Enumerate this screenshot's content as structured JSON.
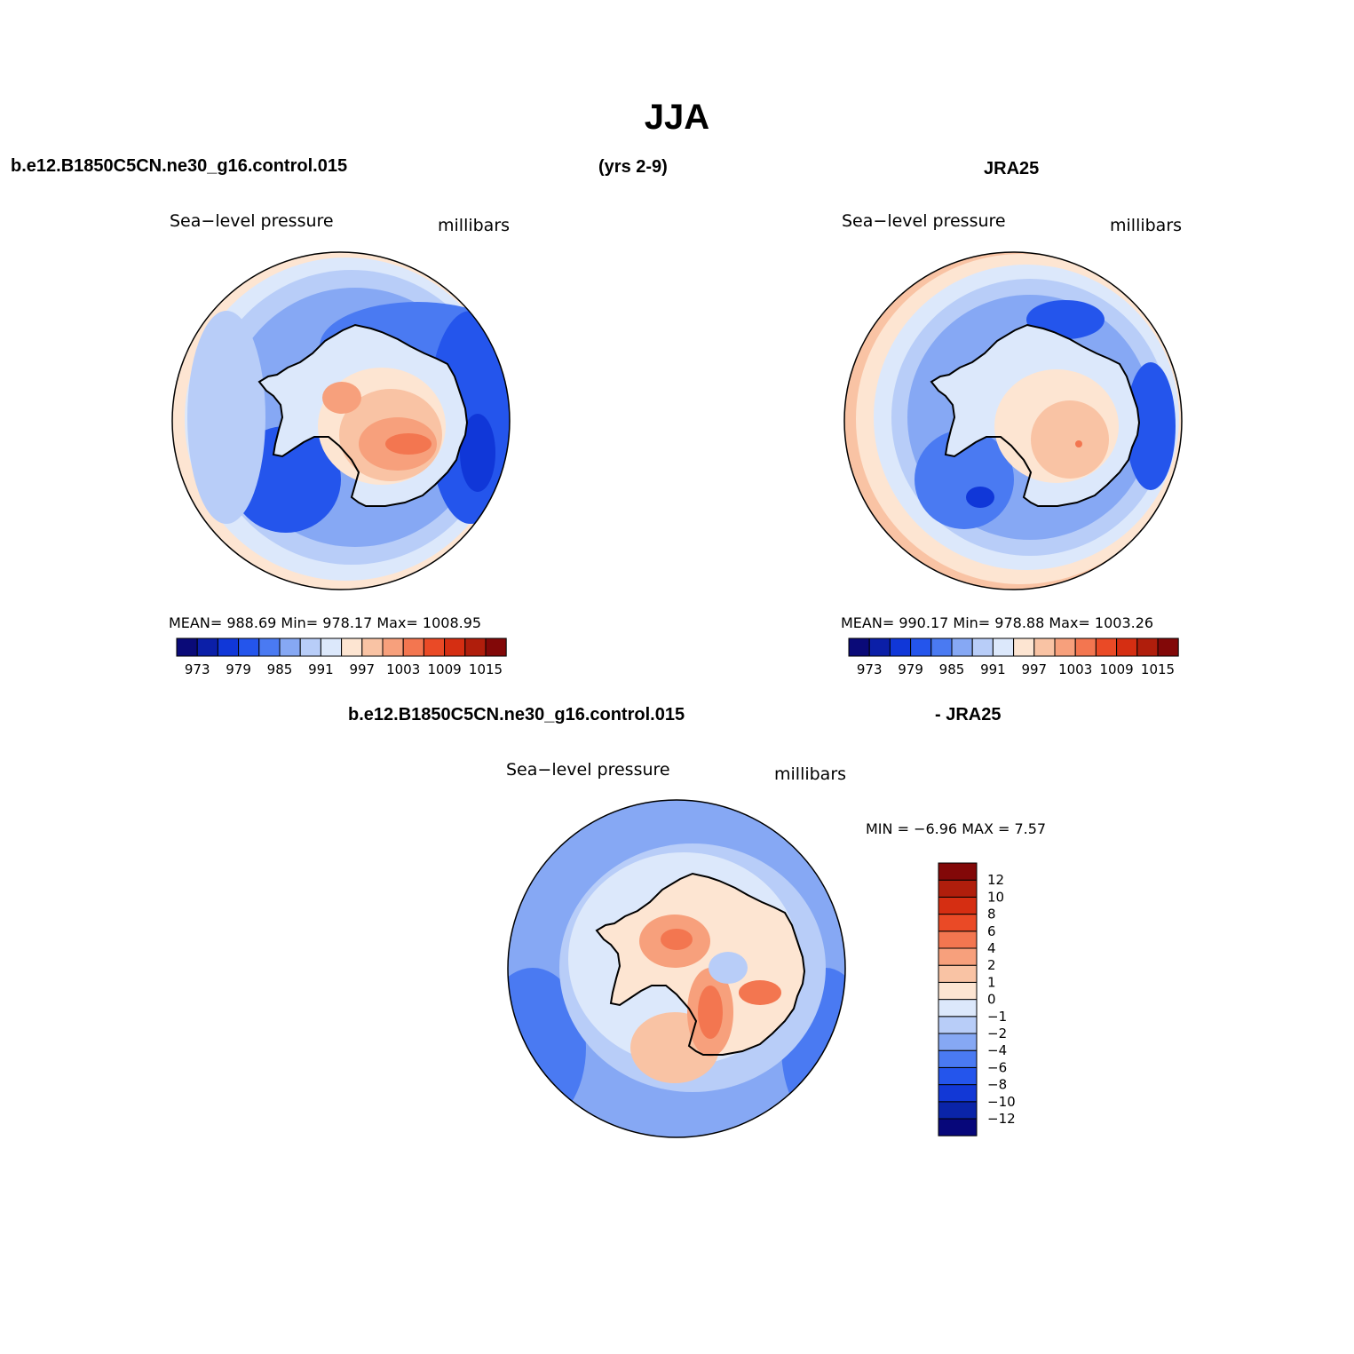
{
  "title": "JJA",
  "header": {
    "case_name": "b.e12.B1850C5CN.ne30_g16.control.015",
    "years": "(yrs 2-9)",
    "obs_name": "JRA25",
    "diff_case": "b.e12.B1850C5CN.ne30_g16.control.015",
    "diff_obs": "- JRA25"
  },
  "panels": [
    {
      "id": "model",
      "variable": "Sea−level  pressure",
      "units": "millibars",
      "stats": "MEAN=  988.69    Min=  978.17    Max=  1008.95",
      "mean": 988.69,
      "min": 978.17,
      "max": 1008.95
    },
    {
      "id": "obs",
      "variable": "Sea−level  pressure",
      "units": "millibars",
      "stats": "MEAN=  990.17    Min=  978.88    Max=  1003.26",
      "mean": 990.17,
      "min": 978.88,
      "max": 1003.26
    },
    {
      "id": "diff",
      "variable": "Sea−level  pressure",
      "units": "millibars",
      "stats": "MIN =    −6.96  MAX =     7.57",
      "min": -6.96,
      "max": 7.57
    }
  ],
  "colorbar_abs": {
    "colors": [
      "#0a0a78",
      "#0b1fa8",
      "#1037d8",
      "#2455ec",
      "#4a7af2",
      "#86a8f4",
      "#b8cdf8",
      "#dce8fb",
      "#fde5d2",
      "#f9c3a4",
      "#f7a07c",
      "#f37650",
      "#ea4a26",
      "#d52e12",
      "#b01e0c",
      "#820808"
    ],
    "labels": [
      "973",
      "979",
      "985",
      "991",
      "997",
      "1003",
      "1009",
      "1015"
    ]
  },
  "colorbar_diff": {
    "colors": [
      "#07077a",
      "#0a24a8",
      "#1238d6",
      "#2455ec",
      "#4a7af2",
      "#86a8f4",
      "#b8cdf8",
      "#dce8fb",
      "#fde5d2",
      "#f9c3a4",
      "#f7a07c",
      "#f37650",
      "#ea4a26",
      "#d52e12",
      "#b01e0c",
      "#820808"
    ],
    "labels": [
      "−12",
      "−10",
      "−8",
      "−6",
      "−4",
      "−2",
      "−1",
      "0",
      "1",
      "2",
      "4",
      "6",
      "8",
      "10",
      "12"
    ]
  }
}
